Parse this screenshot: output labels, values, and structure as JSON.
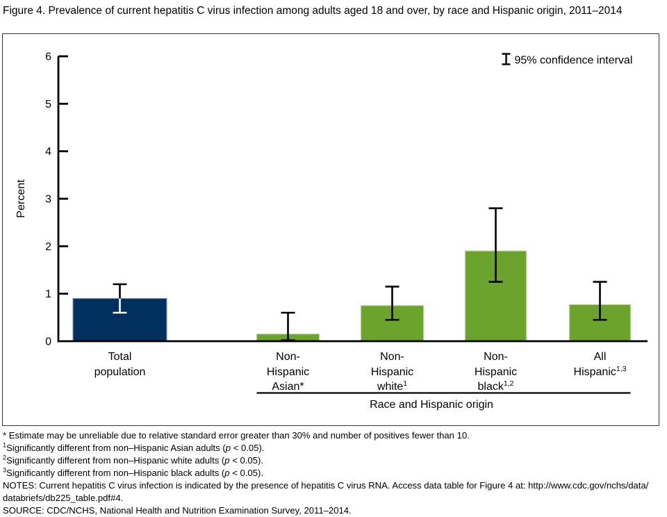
{
  "title": "Figure 4. Prevalence of current hepatitis C virus infection among adults aged 18 and over, by race and Hispanic origin, 2011–2014",
  "chart_data": {
    "type": "bar",
    "title": "Prevalence of current hepatitis C virus infection among adults aged 18 and over, by race and Hispanic origin, 2011–2014",
    "ylabel": "Percent",
    "xlabel": "Race and Hispanic origin",
    "group_axis_label": "Race and Hispanic origin",
    "ylim": [
      0,
      6
    ],
    "yticks": [
      0,
      1,
      2,
      3,
      4,
      5,
      6
    ],
    "legend_label": "95% confidence interval",
    "grid": "off",
    "legend_position": "top-right",
    "bar_color_total": "#02305e",
    "bar_color_group": "#6ba32d",
    "categories": [
      {
        "id": "total-population",
        "label": "Total population",
        "label_lines": [
          {
            "t": "Total"
          },
          {
            "t": "population"
          }
        ],
        "value": 0.9,
        "ci_low": 0.6,
        "ci_high": 1.2,
        "color": "#02305e",
        "edge": "#8093b5",
        "ci_inner": "#ffffff",
        "in_group": false
      },
      {
        "id": "non-hispanic-asian",
        "label": "Non-Hispanic Asian*",
        "label_lines": [
          {
            "t": "Non-"
          },
          {
            "t": "Hispanic"
          },
          {
            "t": "Asian*"
          }
        ],
        "value": 0.15,
        "ci_low": 0.02,
        "ci_high": 0.6,
        "color": "#6ba32d",
        "edge": "#b9d18f",
        "in_group": true
      },
      {
        "id": "non-hispanic-white",
        "label": "Non-Hispanic white (1)",
        "label_lines": [
          {
            "t": "Non-"
          },
          {
            "t": "Hispanic"
          },
          {
            "t": "white",
            "sup": "1"
          }
        ],
        "value": 0.75,
        "ci_low": 0.45,
        "ci_high": 1.15,
        "color": "#6ba32d",
        "edge": "#b9d18f",
        "in_group": true
      },
      {
        "id": "non-hispanic-black",
        "label": "Non-Hispanic black (1,2)",
        "label_lines": [
          {
            "t": "Non-"
          },
          {
            "t": "Hispanic"
          },
          {
            "t": "black",
            "sup": "1,2"
          }
        ],
        "value": 1.9,
        "ci_low": 1.25,
        "ci_high": 2.8,
        "color": "#6ba32d",
        "edge": "#b9d18f",
        "in_group": true
      },
      {
        "id": "all-hispanic",
        "label": "All Hispanic (1,3)",
        "label_lines": [
          {
            "t": "All"
          },
          {
            "t": "Hispanic",
            "sup": "1,3"
          }
        ],
        "value": 0.77,
        "ci_low": 0.45,
        "ci_high": 1.25,
        "color": "#6ba32d",
        "edge": "#b9d18f",
        "in_group": true
      }
    ]
  },
  "footnotes": [
    "* Estimate may be unreliable due to relative standard error greater than 30% and number of positives fewer than 10.",
    "^1^Significantly different from non–Hispanic Asian adults (_p_ < 0.05).",
    "^2^Significantly different from non–Hispanic white adults (_p_ < 0.05).",
    "^3^Significantly different from non–Hispanic black adults (_p_ < 0.05).",
    "NOTES: Current hepatitis C virus infection is indicated by the presence of hepatitis C virus RNA. Access data table for Figure 4 at: http://www.cdc.gov/​nchs/​data/​databriefs/db225_table.pdf#4.",
    "SOURCE: CDC/NCHS, National Health and Nutrition Examination Survey, 2011–2014."
  ]
}
